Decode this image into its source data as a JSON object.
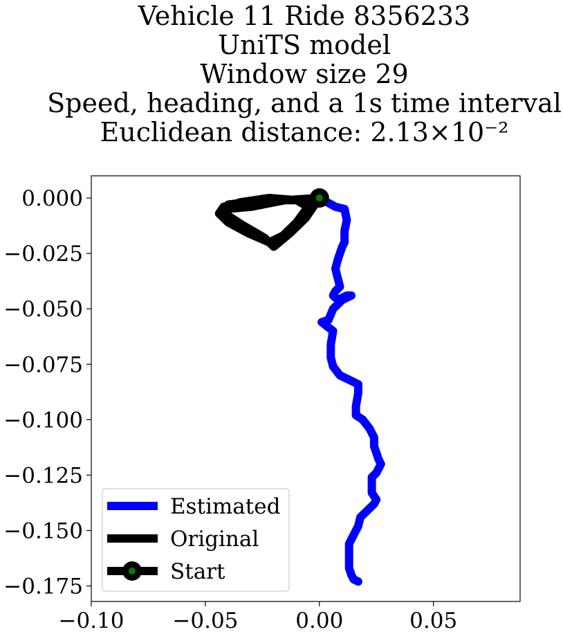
{
  "chart_data": {
    "type": "line",
    "title_lines": [
      "Vehicle 11 Ride 8356233",
      "UniTS model",
      "Window size 29",
      "Speed, heading, and a 1s time interval",
      "Euclidean distance: 2.13×10⁻²"
    ],
    "xlim": [
      -0.1,
      0.088
    ],
    "ylim": [
      -0.182,
      0.01
    ],
    "x_ticks": [
      -0.1,
      -0.05,
      0.0,
      0.05
    ],
    "x_tick_labels": [
      "−0.10",
      "−0.05",
      "0.00",
      "0.05"
    ],
    "y_ticks": [
      0.0,
      -0.025,
      -0.05,
      -0.075,
      -0.1,
      -0.125,
      -0.15,
      -0.175
    ],
    "y_tick_labels": [
      "0.000",
      "−0.025",
      "−0.050",
      "−0.075",
      "−0.100",
      "−0.125",
      "−0.150",
      "−0.175"
    ],
    "legend_position": "lower-left",
    "series": [
      {
        "name": "Estimated",
        "color": "#0000ff",
        "x": [
          0.0,
          0.007,
          0.011,
          0.012,
          0.011,
          0.011,
          0.01,
          0.008,
          0.007,
          0.008,
          0.009,
          0.007,
          0.006,
          0.007,
          0.009,
          0.01,
          0.012,
          0.014,
          0.01,
          0.006,
          0.004,
          0.001,
          0.006,
          0.005,
          0.005,
          0.006,
          0.009,
          0.013,
          0.017,
          0.017,
          0.016,
          0.016,
          0.019,
          0.022,
          0.024,
          0.024,
          0.025,
          0.026,
          0.027,
          0.025,
          0.023,
          0.023,
          0.023,
          0.025,
          0.024,
          0.021,
          0.018,
          0.017,
          0.015,
          0.013,
          0.013,
          0.013,
          0.013,
          0.014,
          0.015,
          0.017
        ],
        "y": [
          0.0,
          -0.004,
          -0.005,
          -0.01,
          -0.015,
          -0.02,
          -0.022,
          -0.028,
          -0.032,
          -0.036,
          -0.04,
          -0.042,
          -0.044,
          -0.045,
          -0.046,
          -0.045,
          -0.044,
          -0.044,
          -0.046,
          -0.05,
          -0.055,
          -0.056,
          -0.06,
          -0.066,
          -0.072,
          -0.076,
          -0.08,
          -0.082,
          -0.084,
          -0.088,
          -0.094,
          -0.098,
          -0.1,
          -0.104,
          -0.108,
          -0.112,
          -0.115,
          -0.118,
          -0.12,
          -0.124,
          -0.126,
          -0.128,
          -0.133,
          -0.136,
          -0.138,
          -0.141,
          -0.144,
          -0.148,
          -0.152,
          -0.156,
          -0.16,
          -0.164,
          -0.167,
          -0.17,
          -0.172,
          -0.173
        ]
      },
      {
        "name": "Original",
        "color": "#000000",
        "x": [
          0.0,
          -0.01,
          -0.025,
          -0.04,
          -0.043,
          -0.034,
          -0.024,
          -0.02,
          -0.013,
          -0.006,
          -0.002,
          -0.008,
          -0.02,
          -0.033,
          -0.042,
          -0.044,
          -0.04,
          -0.031,
          -0.022,
          -0.016,
          -0.01,
          -0.005,
          -0.01,
          -0.022,
          -0.035,
          -0.041,
          -0.03,
          -0.015,
          0.0
        ],
        "y": [
          0.0,
          -0.001,
          -0.001,
          -0.003,
          -0.006,
          -0.012,
          -0.018,
          -0.022,
          -0.016,
          -0.009,
          -0.003,
          -0.001,
          -0.001,
          -0.002,
          -0.004,
          -0.007,
          -0.011,
          -0.016,
          -0.02,
          -0.017,
          -0.011,
          -0.004,
          -0.001,
          0.0,
          -0.002,
          -0.005,
          -0.004,
          -0.001,
          0.0
        ]
      },
      {
        "name": "Start",
        "color": "#000000",
        "marker_fill": "#008000",
        "x": [
          0.0
        ],
        "y": [
          0.0
        ]
      }
    ]
  }
}
